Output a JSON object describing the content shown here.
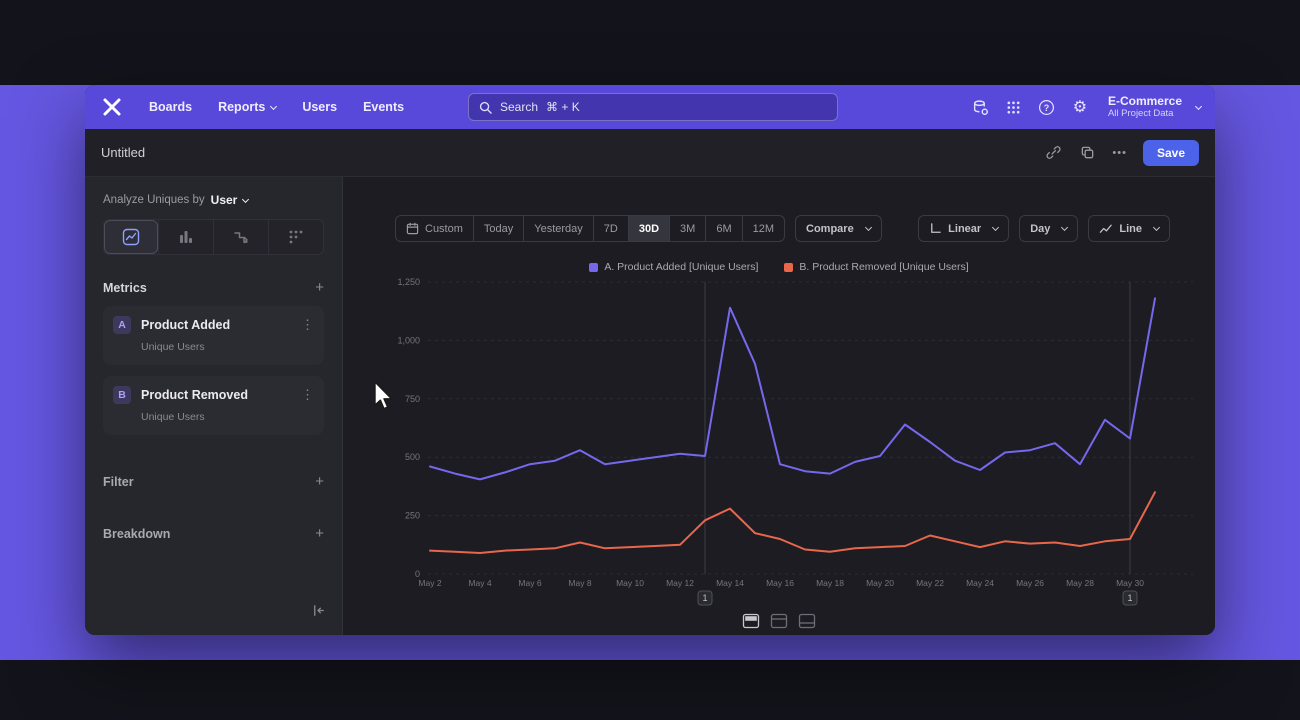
{
  "icons": {
    "gear": "⚙",
    "kebab": "⋮",
    "more": "•••",
    "plus": "+"
  },
  "navbar": {
    "nav_items": [
      "Boards",
      "Reports",
      "Users",
      "Events"
    ],
    "search_label": "Search",
    "search_shortcut": "⌘ + K",
    "project_name": "E-Commerce",
    "project_subtitle": "All Project Data"
  },
  "docbar": {
    "title": "Untitled",
    "save_label": "Save"
  },
  "sidebar": {
    "analyze_prefix": "Analyze Uniques by",
    "analyze_value": "User",
    "metrics_label": "Metrics",
    "metrics": [
      {
        "badge": "A",
        "name": "Product Added",
        "sub": "Unique Users"
      },
      {
        "badge": "B",
        "name": "Product Removed",
        "sub": "Unique Users"
      }
    ],
    "filter_label": "Filter",
    "breakdown_label": "Breakdown"
  },
  "toolbar": {
    "ranges": [
      "Custom",
      "Today",
      "Yesterday",
      "7D",
      "30D",
      "3M",
      "6M",
      "12M"
    ],
    "active_range": "30D",
    "compare_label": "Compare",
    "linear_label": "Linear",
    "interval_label": "Day",
    "chart_type_label": "Line"
  },
  "legend": [
    {
      "label": "A. Product Added [Unique Users]",
      "color": "#7668ec"
    },
    {
      "label": "B. Product Removed [Unique Users]",
      "color": "#e8674b"
    }
  ],
  "annotations": [
    {
      "date": "May 13",
      "label": "1"
    },
    {
      "date": "May 30",
      "label": "1"
    }
  ],
  "chart_data": {
    "type": "line",
    "title": "",
    "xlabel": "",
    "ylabel": "Unique Users",
    "ylim": [
      0,
      1250
    ],
    "yticks": [
      0,
      250,
      500,
      750,
      1000,
      1250
    ],
    "grid": "horizontal-dashed",
    "legend_position": "top-center",
    "x": [
      "May 2",
      "May 3",
      "May 4",
      "May 5",
      "May 6",
      "May 7",
      "May 8",
      "May 9",
      "May 10",
      "May 11",
      "May 12",
      "May 13",
      "May 14",
      "May 15",
      "May 16",
      "May 17",
      "May 18",
      "May 19",
      "May 20",
      "May 21",
      "May 22",
      "May 23",
      "May 24",
      "May 25",
      "May 26",
      "May 27",
      "May 28",
      "May 29",
      "May 30",
      "May 31"
    ],
    "series": [
      {
        "name": "A. Product Added [Unique Users]",
        "color": "#7668ec",
        "values": [
          460,
          430,
          405,
          435,
          470,
          485,
          530,
          470,
          485,
          500,
          515,
          505,
          1140,
          900,
          470,
          440,
          430,
          480,
          505,
          640,
          565,
          485,
          445,
          520,
          530,
          560,
          470,
          660,
          580,
          1180
        ]
      },
      {
        "name": "B. Product Removed [Unique Users]",
        "color": "#e8674b",
        "values": [
          100,
          95,
          90,
          100,
          105,
          110,
          135,
          110,
          115,
          120,
          125,
          230,
          280,
          175,
          150,
          105,
          95,
          110,
          115,
          120,
          165,
          140,
          115,
          140,
          130,
          135,
          120,
          140,
          150,
          350
        ]
      }
    ]
  }
}
